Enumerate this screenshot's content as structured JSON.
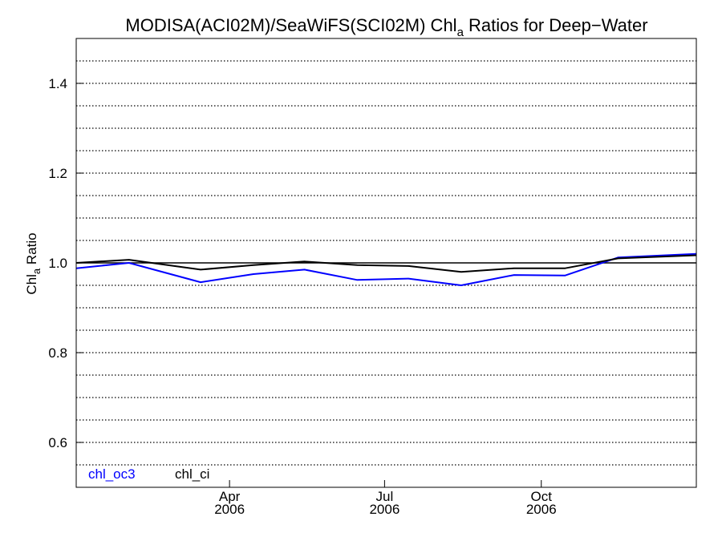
{
  "chart_data": {
    "type": "line",
    "title": {
      "prefix": "MODISA(ACI02M)/SeaWiFS(SCI02M)  Chl",
      "subscript": "a",
      "suffix": " Ratios for Deep−Water"
    },
    "ylabel": {
      "main": "Chl",
      "subscript": "a",
      "suffix": " Ratio"
    },
    "ylim": [
      0.5,
      1.5
    ],
    "y_ticks": [
      {
        "value": 0.6,
        "label": "0.6"
      },
      {
        "value": 0.8,
        "label": "0.8"
      },
      {
        "value": 1.0,
        "label": "1.0"
      },
      {
        "value": 1.2,
        "label": "1.2"
      },
      {
        "value": 1.4,
        "label": "1.4"
      }
    ],
    "y_minor_step": 0.05,
    "xlim": [
      "2006-01-01",
      "2006-12-31"
    ],
    "x_ticks": [
      {
        "date": "2006-04-01",
        "month": "Apr",
        "year": "2006"
      },
      {
        "date": "2006-07-01",
        "month": "Jul",
        "year": "2006"
      },
      {
        "date": "2006-10-01",
        "month": "Oct",
        "year": "2006"
      }
    ],
    "grid": "dotted horizontal",
    "reference_line": 1.0,
    "legend_position": "bottom-left",
    "series": [
      {
        "name": "chl_oc3",
        "color": "#0000ff",
        "points": [
          [
            "2006-01-01",
            0.988
          ],
          [
            "2006-02-01",
            1.0
          ],
          [
            "2006-03-15",
            0.957
          ],
          [
            "2006-04-15",
            0.975
          ],
          [
            "2006-05-15",
            0.985
          ],
          [
            "2006-06-15",
            0.962
          ],
          [
            "2006-07-15",
            0.965
          ],
          [
            "2006-08-15",
            0.95
          ],
          [
            "2006-09-15",
            0.973
          ],
          [
            "2006-10-15",
            0.972
          ],
          [
            "2006-11-15",
            1.012
          ],
          [
            "2006-12-31",
            1.02
          ]
        ]
      },
      {
        "name": "chl_ci",
        "color": "#000000",
        "points": [
          [
            "2006-01-01",
            1.0
          ],
          [
            "2006-02-01",
            1.007
          ],
          [
            "2006-03-15",
            0.985
          ],
          [
            "2006-04-15",
            0.995
          ],
          [
            "2006-05-15",
            1.003
          ],
          [
            "2006-06-15",
            0.995
          ],
          [
            "2006-07-15",
            0.993
          ],
          [
            "2006-08-15",
            0.98
          ],
          [
            "2006-09-15",
            0.988
          ],
          [
            "2006-10-15",
            0.988
          ],
          [
            "2006-11-15",
            1.01
          ],
          [
            "2006-12-31",
            1.017
          ]
        ]
      }
    ]
  }
}
